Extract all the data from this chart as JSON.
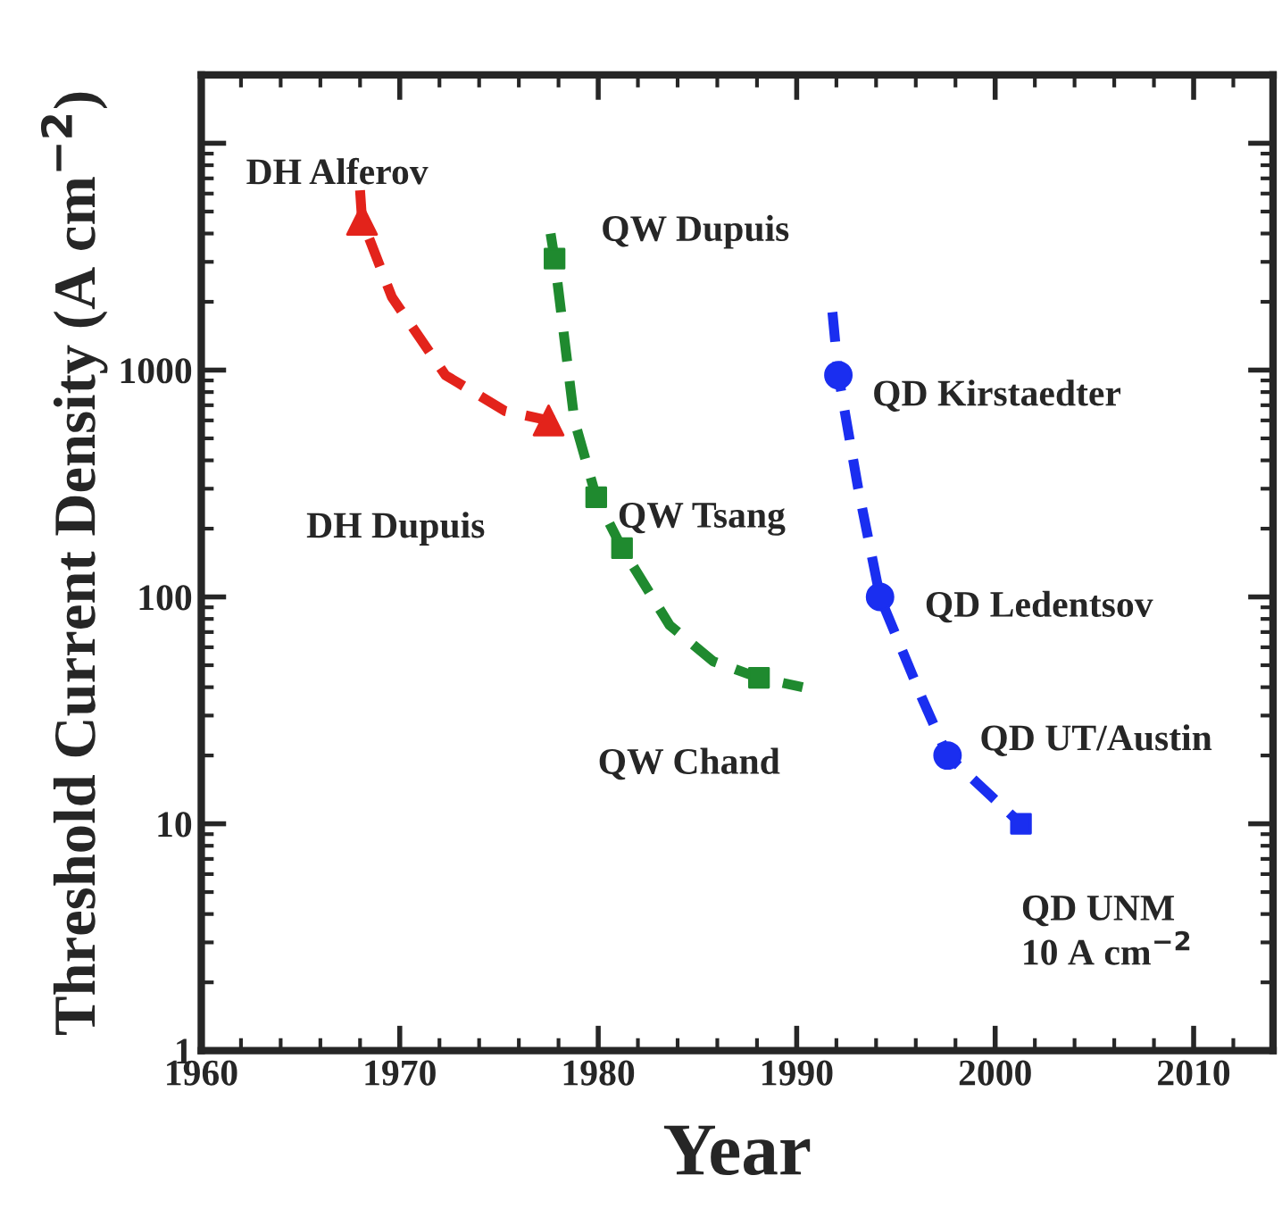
{
  "chart_data": {
    "type": "line",
    "xlabel": "Year",
    "ylabel": "Threshold Current Density (A cm$^{−2}$)",
    "log": "y",
    "xlim": [
      1960,
      2014
    ],
    "xticks": [
      1960,
      1970,
      1980,
      1990,
      2000,
      2010
    ],
    "ylim": [
      1,
      20000
    ],
    "yticks": [
      1,
      10,
      100,
      1000,
      {
        "value": 10000,
        "label": null
      }
    ],
    "grid": false,
    "legend": false,
    "series": [
      {
        "color": "#e3231b",
        "line_style": "dashed",
        "marker": "none",
        "x": [
          1968,
          1968.1,
          1969.6,
          1972.3,
          1975.3,
          1977.5,
          1978.6
        ],
        "values": [
          6200,
          4600,
          2100,
          950,
          660,
          600,
          590
        ]
      },
      {
        "type": "scatter",
        "color": "#e3231b",
        "marker": "triangle",
        "x": [
          1968.1,
          1977.5
        ],
        "values": [
          4600,
          600
        ]
      },
      {
        "color": "#1f8a2f",
        "line_style": "dashed",
        "marker": "none",
        "x": [
          1977.6,
          1977.8,
          1978.8,
          1979.9,
          1981.2,
          1983.6,
          1985.8,
          1988.1,
          1990.3
        ],
        "values": [
          4000,
          3100,
          600,
          275,
          164,
          75,
          52,
          44,
          40
        ]
      },
      {
        "type": "scatter",
        "color": "#1f8a2f",
        "marker": "square",
        "x": [
          1977.8,
          1979.9,
          1981.2,
          1988.1
        ],
        "values": [
          3100,
          275,
          164,
          44
        ]
      },
      {
        "color": "#1a2ef0",
        "line_style": "dashed",
        "marker": "none",
        "x": [
          1991.8,
          1992.1,
          1993.1,
          1994.2,
          1996.3,
          1997.6,
          2001.3
        ],
        "values": [
          1800,
          950,
          300,
          100,
          36,
          20,
          10
        ]
      },
      {
        "type": "scatter",
        "color": "#1a2ef0",
        "marker": "circle",
        "x": [
          1992.1,
          1994.2,
          1997.6
        ],
        "values": [
          950,
          100,
          20
        ]
      },
      {
        "type": "scatter",
        "color": "#1a2ef0",
        "marker": "square",
        "x": [
          2001.3
        ],
        "values": [
          10
        ]
      }
    ],
    "annotations": [
      {
        "text": "DH Alferov",
        "x": 1968.1,
        "y": 4600
      },
      "DH Dupuis",
      {
        "text": "QW Dupuis",
        "x": 1977.8,
        "y": 3100
      },
      {
        "text": "QW Tsang",
        "x": 1979.9,
        "y": 275
      },
      "QW Chand",
      {
        "text": "QD Kirstaedter",
        "x": 1992.1,
        "y": 950
      },
      {
        "text": "QD Ledentsov",
        "x": 1994.2,
        "y": 100
      },
      {
        "text": "QD UT/Austin",
        "x": 1997.6,
        "y": 20
      },
      "QD UNM\n10 A cm$^{−2}$"
    ]
  }
}
